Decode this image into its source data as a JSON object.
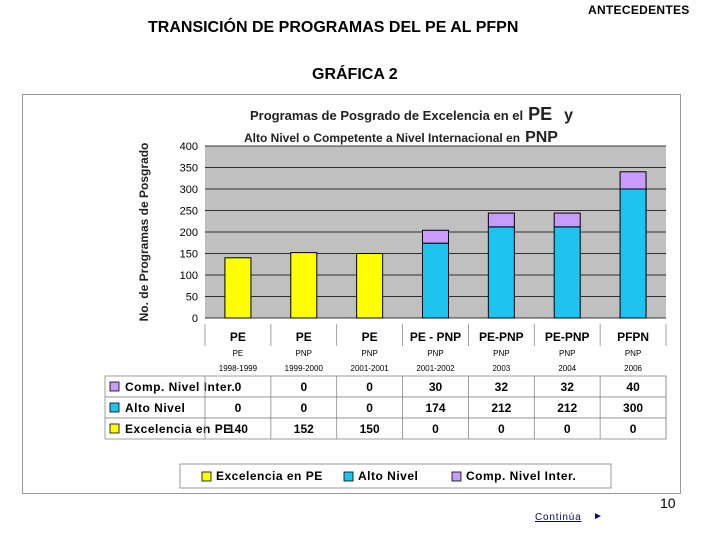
{
  "header": {
    "antecedentes": "ANTECEDENTES",
    "title": "TRANSICIÓN DE  PROGRAMAS DEL PE AL PFPN",
    "subtitle": "GRÁFICA 2"
  },
  "colors": {
    "excelencia": "#ffff00",
    "alto_nivel": "#1ec3f0",
    "comp_nivel": "#c89bff",
    "plot_bg": "#c0c0c0"
  },
  "chart_data": {
    "type": "bar",
    "stacked": true,
    "title_line1_a": "Programas de Posgrado de  Excelencia  en el",
    "title_line1_b": "PE",
    "title_line1_c": "y",
    "title_line2_a": "Alto Nivel  o Competente a Nivel Internacional  en",
    "title_line2_b": "PNP",
    "ylabel": "No. de Programas de Posgrado",
    "ylim": [
      0,
      400
    ],
    "yticks": [
      0,
      50,
      100,
      150,
      200,
      250,
      300,
      350,
      400
    ],
    "categories": [
      "PE",
      "PE",
      "PE",
      "PE - PNP",
      "PE-PNP",
      "PE-PNP",
      "PFPN"
    ],
    "program_labels": [
      "PE",
      "PNP",
      "PNP",
      "PNP",
      "PNP",
      "PNP",
      "PNP"
    ],
    "periods": [
      "1998-1999",
      "1999-2000",
      "2001-2001",
      "2001-2002",
      "2003",
      "2004",
      "2006"
    ],
    "series": [
      {
        "name": "Excelencia en PE",
        "key": "excelencia",
        "values": [
          140,
          152,
          150,
          0,
          0,
          0,
          0
        ]
      },
      {
        "name": "Alto Nivel",
        "key": "alto_nivel",
        "values": [
          0,
          0,
          0,
          174,
          212,
          212,
          300
        ]
      },
      {
        "name": "Comp. Nivel Inter.",
        "key": "comp_nivel",
        "values": [
          0,
          0,
          0,
          30,
          32,
          32,
          40
        ]
      }
    ],
    "table_row_order": [
      "comp_nivel",
      "alto_nivel",
      "excelencia"
    ],
    "legend_position": "bottom"
  },
  "footer": {
    "page_number": "10",
    "continue_label": "Continúa",
    "continue_arrow": "►"
  }
}
